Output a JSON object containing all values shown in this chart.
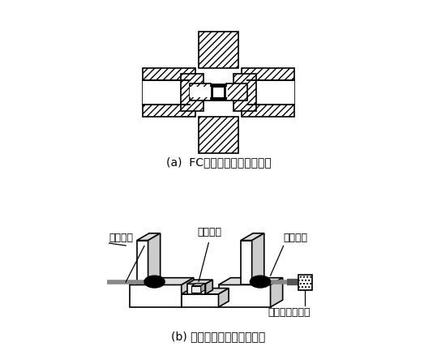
{
  "bg_color": "#ffffff",
  "line_color": "#000000",
  "hatch_pattern": "////",
  "label_a": "(a)  FC型固定光衰减器结构图",
  "label_b": "(b) 小型可变光衰减器结构图",
  "text_duizhun": "对准套筒",
  "text_input": "输入光纤",
  "text_output": "输出光纤",
  "text_knob": "衰减量调节旋鈕",
  "font_size_label": 10,
  "font_size_annot": 9
}
